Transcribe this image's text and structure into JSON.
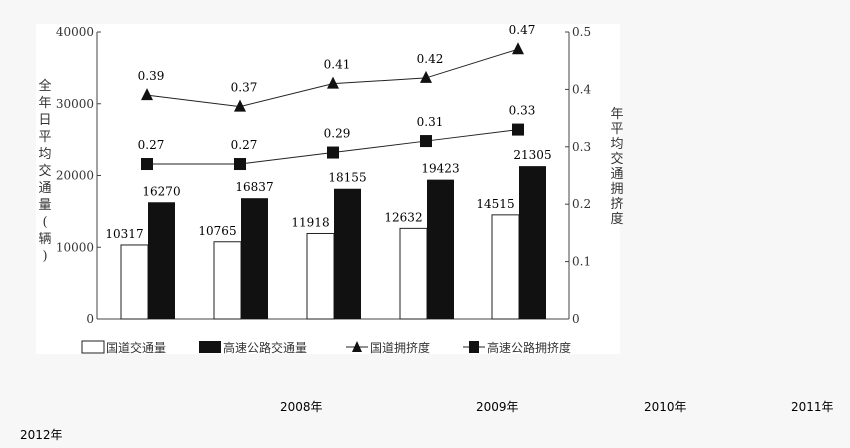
{
  "chart_data": {
    "type": "bar+line",
    "categories": [
      "2008年",
      "2009年",
      "2010年",
      "2011年",
      "2012年"
    ],
    "left_axis": {
      "label": "全年日平均交通量(辆)",
      "ylim": [
        0,
        40000
      ],
      "ticks": [
        "0",
        "10000",
        "20000",
        "30000",
        "40000"
      ]
    },
    "right_axis": {
      "label": "年平均交通拥挤度",
      "ylim": [
        0,
        0.5
      ],
      "ticks": [
        "0",
        "0.1",
        "0.2",
        "0.3",
        "0.4",
        "0.5"
      ]
    },
    "series": [
      {
        "name": "国道交通量",
        "kind": "bar",
        "axis": "left",
        "fill": "#ffffff",
        "values": [
          10317,
          10765,
          11918,
          12632,
          14515
        ]
      },
      {
        "name": "高速公路交通量",
        "kind": "bar",
        "axis": "left",
        "fill": "#111111",
        "values": [
          16270,
          16837,
          18155,
          19423,
          21305
        ]
      },
      {
        "name": "国道拥挤度",
        "kind": "line",
        "marker": "triangle",
        "axis": "right",
        "values": [
          0.39,
          0.37,
          0.41,
          0.42,
          0.47
        ]
      },
      {
        "name": "高速公路拥挤度",
        "kind": "line",
        "marker": "square",
        "axis": "right",
        "values": [
          0.27,
          0.27,
          0.29,
          0.31,
          0.33
        ]
      }
    ],
    "legend": "bottom",
    "grid": false
  }
}
